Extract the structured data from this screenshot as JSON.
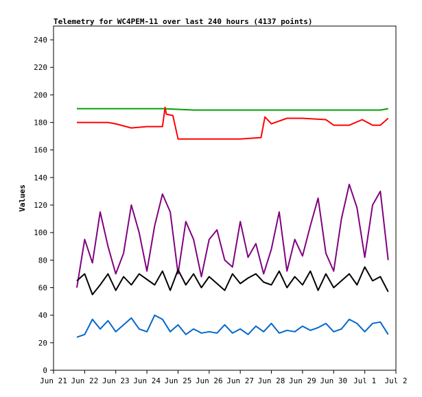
{
  "chart_data": {
    "type": "line",
    "title": "Telemetry for WC4PEM-11 over last 240 hours (4137 points)",
    "xlabel": "",
    "ylabel": "Values",
    "ylim": [
      0,
      250
    ],
    "yticks": [
      0,
      20,
      40,
      60,
      80,
      100,
      120,
      140,
      160,
      180,
      200,
      220,
      240
    ],
    "xlim": [
      "Jun 21",
      "Jul 2"
    ],
    "xticks": [
      "Jun 21",
      "Jun 22",
      "Jun 23",
      "Jun 24",
      "Jun 25",
      "Jun 26",
      "Jun 27",
      "Jun 28",
      "Jun 29",
      "Jun 30",
      "Jul 1",
      "Jul 2"
    ],
    "grid": false,
    "legend": "none",
    "series": [
      {
        "color": "#00a000",
        "x": [
          "Jun 21 18:00",
          "Jun 22 12:00",
          "Jun 23 12:00",
          "Jun 24 12:00",
          "Jun 25 12:00",
          "Jun 26 12:00",
          "Jun 27 12:00",
          "Jun 28 12:00",
          "Jun 29 12:00",
          "Jun 30 12:00",
          "Jul 1 12:00",
          "Jul 1 18:00"
        ],
        "values": [
          190,
          190,
          190,
          190,
          189,
          189,
          189,
          189,
          189,
          189,
          189,
          190
        ]
      },
      {
        "color": "#ff0000",
        "x": [
          "Jun 21 18:00",
          "Jun 22 18:00",
          "Jun 23 00:00",
          "Jun 23 12:00",
          "Jun 24 00:00",
          "Jun 24 12:00",
          "Jun 24 14:00",
          "Jun 24 15:00",
          "Jun 24 20:00",
          "Jun 25 00:00",
          "Jun 26 00:00",
          "Jun 27 00:00",
          "Jun 27 16:00",
          "Jun 27 19:00",
          "Jun 28 00:00",
          "Jun 28 12:00",
          "Jun 29 00:00",
          "Jun 29 18:00",
          "Jun 30 00:00",
          "Jun 30 12:00",
          "Jun 30 22:00",
          "Jul 1 06:00",
          "Jul 1 12:00",
          "Jul 1 18:00"
        ],
        "values": [
          180,
          180,
          179,
          176,
          177,
          177,
          191,
          186,
          185,
          168,
          168,
          168,
          169,
          184,
          179,
          183,
          183,
          182,
          178,
          178,
          182,
          178,
          178,
          183
        ]
      },
      {
        "color": "#800080",
        "x": [
          "Jun 21 18:00",
          "Jun 22 00:00",
          "Jun 22 06:00",
          "Jun 22 12:00",
          "Jun 22 18:00",
          "Jun 23 00:00",
          "Jun 23 06:00",
          "Jun 23 12:00",
          "Jun 23 18:00",
          "Jun 24 00:00",
          "Jun 24 06:00",
          "Jun 24 12:00",
          "Jun 24 18:00",
          "Jun 25 00:00",
          "Jun 25 06:00",
          "Jun 25 12:00",
          "Jun 25 18:00",
          "Jun 26 00:00",
          "Jun 26 06:00",
          "Jun 26 12:00",
          "Jun 26 18:00",
          "Jun 27 00:00",
          "Jun 27 06:00",
          "Jun 27 12:00",
          "Jun 27 18:00",
          "Jun 28 00:00",
          "Jun 28 06:00",
          "Jun 28 12:00",
          "Jun 28 18:00",
          "Jun 29 00:00",
          "Jun 29 06:00",
          "Jun 29 12:00",
          "Jun 29 18:00",
          "Jun 30 00:00",
          "Jun 30 06:00",
          "Jun 30 12:00",
          "Jun 30 18:00",
          "Jul 1 00:00",
          "Jul 1 06:00",
          "Jul 1 12:00",
          "Jul 1 18:00"
        ],
        "values": [
          60,
          95,
          78,
          115,
          90,
          70,
          85,
          120,
          100,
          72,
          105,
          128,
          115,
          70,
          108,
          95,
          68,
          95,
          102,
          80,
          75,
          108,
          82,
          92,
          70,
          88,
          115,
          72,
          95,
          83,
          105,
          125,
          85,
          72,
          110,
          135,
          118,
          82,
          120,
          130,
          80
        ]
      },
      {
        "color": "#000000",
        "x": [
          "Jun 21 18:00",
          "Jun 22 00:00",
          "Jun 22 06:00",
          "Jun 22 12:00",
          "Jun 22 18:00",
          "Jun 23 00:00",
          "Jun 23 06:00",
          "Jun 23 12:00",
          "Jun 23 18:00",
          "Jun 24 00:00",
          "Jun 24 06:00",
          "Jun 24 12:00",
          "Jun 24 18:00",
          "Jun 25 00:00",
          "Jun 25 06:00",
          "Jun 25 12:00",
          "Jun 25 18:00",
          "Jun 26 00:00",
          "Jun 26 06:00",
          "Jun 26 12:00",
          "Jun 26 18:00",
          "Jun 27 00:00",
          "Jun 27 06:00",
          "Jun 27 12:00",
          "Jun 27 18:00",
          "Jun 28 00:00",
          "Jun 28 06:00",
          "Jun 28 12:00",
          "Jun 28 18:00",
          "Jun 29 00:00",
          "Jun 29 06:00",
          "Jun 29 12:00",
          "Jun 29 18:00",
          "Jun 30 00:00",
          "Jun 30 06:00",
          "Jun 30 12:00",
          "Jun 30 18:00",
          "Jul 1 00:00",
          "Jul 1 06:00",
          "Jul 1 12:00",
          "Jul 1 18:00"
        ],
        "values": [
          65,
          70,
          55,
          62,
          70,
          58,
          68,
          62,
          70,
          66,
          62,
          72,
          58,
          73,
          62,
          70,
          60,
          68,
          63,
          58,
          70,
          63,
          67,
          70,
          64,
          62,
          72,
          60,
          68,
          62,
          72,
          58,
          70,
          60,
          65,
          70,
          62,
          75,
          65,
          68,
          57
        ]
      },
      {
        "color": "#0066cc",
        "x": [
          "Jun 21 18:00",
          "Jun 22 00:00",
          "Jun 22 06:00",
          "Jun 22 12:00",
          "Jun 22 18:00",
          "Jun 23 00:00",
          "Jun 23 06:00",
          "Jun 23 12:00",
          "Jun 23 18:00",
          "Jun 24 00:00",
          "Jun 24 06:00",
          "Jun 24 12:00",
          "Jun 24 18:00",
          "Jun 25 00:00",
          "Jun 25 06:00",
          "Jun 25 12:00",
          "Jun 25 18:00",
          "Jun 26 00:00",
          "Jun 26 06:00",
          "Jun 26 12:00",
          "Jun 26 18:00",
          "Jun 27 00:00",
          "Jun 27 06:00",
          "Jun 27 12:00",
          "Jun 27 18:00",
          "Jun 28 00:00",
          "Jun 28 06:00",
          "Jun 28 12:00",
          "Jun 28 18:00",
          "Jun 29 00:00",
          "Jun 29 06:00",
          "Jun 29 12:00",
          "Jun 29 18:00",
          "Jun 30 00:00",
          "Jun 30 06:00",
          "Jun 30 12:00",
          "Jun 30 18:00",
          "Jul 1 00:00",
          "Jul 1 06:00",
          "Jul 1 12:00",
          "Jul 1 18:00"
        ],
        "values": [
          24,
          26,
          37,
          30,
          36,
          28,
          33,
          38,
          30,
          28,
          40,
          37,
          28,
          33,
          26,
          30,
          27,
          28,
          27,
          33,
          27,
          30,
          26,
          32,
          28,
          34,
          27,
          29,
          28,
          32,
          29,
          31,
          34,
          28,
          30,
          37,
          34,
          28,
          34,
          35,
          26
        ]
      }
    ]
  }
}
